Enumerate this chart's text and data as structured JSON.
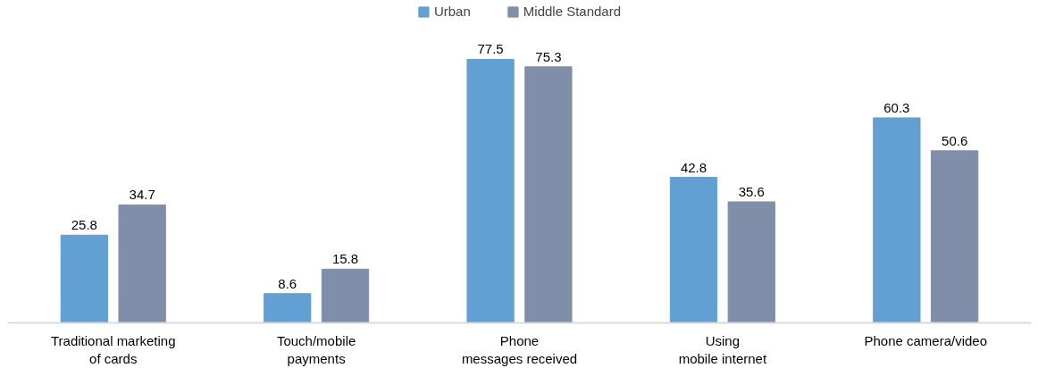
{
  "chart_data": {
    "type": "bar",
    "categories": [
      "Traditional marketing of cards",
      "Touch/mobile payments",
      "Phone messages received",
      "Using mobile internet",
      "Phone camera/video"
    ],
    "series": [
      {
        "name": "Urban",
        "color": "#629fd2",
        "values": [
          25.8,
          8.6,
          77.5,
          42.8,
          60.3
        ]
      },
      {
        "name": "Middle Standard",
        "color": "#7f8ea9",
        "values": [
          34.7,
          15.8,
          75.3,
          35.6,
          50.6
        ]
      }
    ],
    "data_labels": true,
    "legend": "top",
    "grid": false
  }
}
